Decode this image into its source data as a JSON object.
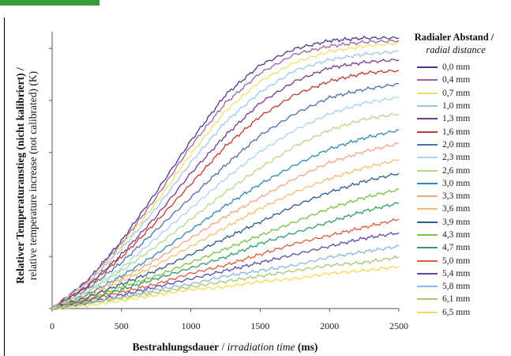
{
  "chart_data": {
    "type": "line",
    "title": "",
    "xlabel_bold": "Bestrahlungsdauer",
    "xlabel_italic": "irradiation time",
    "xlabel_unit": "(ms)",
    "ylabel_line1": "Relativer Temperaturanstieg (nicht kalibriert) /",
    "ylabel_line2": "relative temperature increase (not calibrated) (K)",
    "xlim": [
      0,
      2500
    ],
    "xticks": [
      "0",
      "500",
      "1000",
      "1500",
      "2000",
      "2500"
    ],
    "legend_title": "Radialer Abstand /",
    "legend_subtitle": "radial distance",
    "legend_position": "right",
    "grid": false,
    "x": [
      0,
      250,
      500,
      750,
      1000,
      1250,
      1500,
      1750,
      2000,
      2250,
      2500
    ],
    "series": [
      {
        "name": "0,0 mm",
        "color": "#4a3a8c",
        "values": [
          0,
          0.1,
          0.25,
          0.43,
          0.62,
          0.79,
          0.9,
          0.96,
          0.99,
          1.0,
          1.0
        ]
      },
      {
        "name": "0,4 mm",
        "color": "#a262a8",
        "values": [
          0,
          0.1,
          0.24,
          0.41,
          0.6,
          0.76,
          0.87,
          0.94,
          0.97,
          0.985,
          0.99
        ]
      },
      {
        "name": "0,7 mm",
        "color": "#f2e066",
        "values": [
          0,
          0.09,
          0.23,
          0.39,
          0.57,
          0.73,
          0.84,
          0.91,
          0.95,
          0.97,
          0.98
        ]
      },
      {
        "name": "1,0 mm",
        "color": "#9cc8e8",
        "values": [
          0,
          0.09,
          0.22,
          0.37,
          0.54,
          0.69,
          0.8,
          0.88,
          0.92,
          0.94,
          0.95
        ]
      },
      {
        "name": "1,3 mm",
        "color": "#7a3a8a",
        "values": [
          0,
          0.08,
          0.2,
          0.34,
          0.5,
          0.64,
          0.76,
          0.84,
          0.89,
          0.91,
          0.92
        ]
      },
      {
        "name": "1,6 mm",
        "color": "#c0392b",
        "values": [
          0,
          0.08,
          0.19,
          0.32,
          0.46,
          0.6,
          0.71,
          0.79,
          0.84,
          0.87,
          0.88
        ]
      },
      {
        "name": "2,0 mm",
        "color": "#4d6fa8",
        "values": [
          0,
          0.07,
          0.17,
          0.29,
          0.41,
          0.53,
          0.64,
          0.72,
          0.78,
          0.81,
          0.83
        ]
      },
      {
        "name": "2,3 mm",
        "color": "#a8d4ea",
        "values": [
          0,
          0.06,
          0.15,
          0.26,
          0.37,
          0.48,
          0.58,
          0.66,
          0.72,
          0.76,
          0.78
        ]
      },
      {
        "name": "2,6 mm",
        "color": "#b6d88a",
        "values": [
          0,
          0.06,
          0.14,
          0.23,
          0.33,
          0.43,
          0.52,
          0.6,
          0.66,
          0.7,
          0.72
        ]
      },
      {
        "name": "3,0 mm",
        "color": "#2e8ab8",
        "values": [
          0,
          0.05,
          0.12,
          0.2,
          0.29,
          0.38,
          0.46,
          0.53,
          0.59,
          0.63,
          0.66
        ]
      },
      {
        "name": "3,3 mm",
        "color": "#f4a582",
        "values": [
          0,
          0.05,
          0.11,
          0.18,
          0.26,
          0.34,
          0.41,
          0.48,
          0.54,
          0.58,
          0.61
        ]
      },
      {
        "name": "3,6 mm",
        "color": "#f0c070",
        "values": [
          0,
          0.04,
          0.1,
          0.16,
          0.23,
          0.3,
          0.37,
          0.43,
          0.48,
          0.52,
          0.55
        ]
      },
      {
        "name": "3,9 mm",
        "color": "#2a5a8a",
        "values": [
          0,
          0.04,
          0.09,
          0.14,
          0.2,
          0.26,
          0.32,
          0.38,
          0.43,
          0.47,
          0.5
        ]
      },
      {
        "name": "4,3 mm",
        "color": "#7fbf3f",
        "values": [
          0,
          0.03,
          0.08,
          0.12,
          0.17,
          0.22,
          0.27,
          0.32,
          0.37,
          0.41,
          0.44
        ]
      },
      {
        "name": "4,7 mm",
        "color": "#2e9e6a",
        "values": [
          0,
          0.03,
          0.07,
          0.11,
          0.15,
          0.19,
          0.24,
          0.28,
          0.32,
          0.36,
          0.39
        ]
      },
      {
        "name": "5,0 mm",
        "color": "#e05a3a",
        "values": [
          0,
          0.03,
          0.06,
          0.09,
          0.13,
          0.16,
          0.2,
          0.24,
          0.27,
          0.3,
          0.33
        ]
      },
      {
        "name": "5,4 mm",
        "color": "#5a4aa8",
        "values": [
          0,
          0.02,
          0.05,
          0.08,
          0.11,
          0.14,
          0.17,
          0.2,
          0.23,
          0.26,
          0.28
        ]
      },
      {
        "name": "5,8 mm",
        "color": "#8ab8e0",
        "values": [
          0,
          0.02,
          0.04,
          0.07,
          0.09,
          0.12,
          0.14,
          0.16,
          0.19,
          0.21,
          0.23
        ]
      },
      {
        "name": "6,1 mm",
        "color": "#a8c870",
        "values": [
          0,
          0.02,
          0.04,
          0.06,
          0.08,
          0.1,
          0.12,
          0.14,
          0.16,
          0.17,
          0.19
        ]
      },
      {
        "name": "6,5 mm",
        "color": "#f2dc5a",
        "values": [
          0,
          0.01,
          0.03,
          0.05,
          0.07,
          0.08,
          0.1,
          0.11,
          0.13,
          0.14,
          0.155
        ]
      }
    ]
  }
}
